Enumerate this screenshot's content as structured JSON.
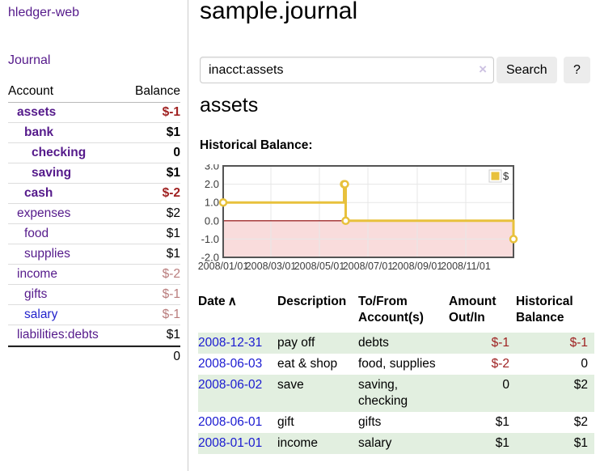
{
  "colors": {
    "link_purple": "#551a8b",
    "link_blue": "#2222cc",
    "date_link_blue": "#1a1ad1",
    "negative_strong": "#a02222",
    "negative_muted": "#b97c7c",
    "table_negative": "#9e2121",
    "row_green": "#e2efe0",
    "chart_gold": "#e8c13c",
    "chart_negative_fill": "#f9dcdc",
    "chart_zero_line": "#8b0000",
    "chart_border": "#545454"
  },
  "app": {
    "title": "hledger-web",
    "nav_journal": "Journal"
  },
  "sidebar": {
    "headers": {
      "account": "Account",
      "balance": "Balance"
    },
    "accounts": [
      {
        "name": "assets",
        "balance": "$-1",
        "depth": 1,
        "current": true,
        "balance_tone": "negative-strong"
      },
      {
        "name": "bank",
        "balance": "$1",
        "depth": 2,
        "current": true,
        "balance_tone": "normal"
      },
      {
        "name": "checking",
        "balance": "0",
        "depth": 3,
        "current": true,
        "balance_tone": "normal"
      },
      {
        "name": "saving",
        "balance": "$1",
        "depth": 3,
        "current": true,
        "balance_tone": "normal"
      },
      {
        "name": "cash",
        "balance": "$-2",
        "depth": 2,
        "current": true,
        "balance_tone": "negative-strong"
      },
      {
        "name": "expenses",
        "balance": "$2",
        "depth": 1,
        "current": false,
        "balance_tone": "normal"
      },
      {
        "name": "food",
        "balance": "$1",
        "depth": 2,
        "current": false,
        "balance_tone": "normal"
      },
      {
        "name": "supplies",
        "balance": "$1",
        "depth": 2,
        "current": false,
        "balance_tone": "normal"
      },
      {
        "name": "income",
        "balance": "$-2",
        "depth": 1,
        "current": false,
        "balance_tone": "negative-muted"
      },
      {
        "name": "gifts",
        "balance": "$-1",
        "depth": 2,
        "current": false,
        "balance_tone": "negative-muted"
      },
      {
        "name": "salary",
        "balance": "$-1",
        "depth": 2,
        "current": false,
        "balance_tone": "negative-muted",
        "link_tone": "blue"
      },
      {
        "name": "liabilities:debts",
        "balance": "$1",
        "depth": 1,
        "current": false,
        "balance_tone": "normal"
      }
    ],
    "total": "0"
  },
  "main": {
    "title": "sample.journal",
    "search": {
      "value": "inacct:assets",
      "clear_icon": "×",
      "submit_label": "Search",
      "help_label": "?"
    },
    "account_heading": "assets",
    "chart_title": "Historical Balance:"
  },
  "chart_data": {
    "type": "line",
    "step": true,
    "title": "Historical Balance",
    "series": [
      {
        "name": "$",
        "color": "#e8c13c",
        "points": [
          [
            "2008-01-01",
            1
          ],
          [
            "2008-06-01",
            2
          ],
          [
            "2008-06-02",
            2
          ],
          [
            "2008-06-03",
            0
          ],
          [
            "2008-12-31",
            -1
          ]
        ]
      }
    ],
    "x_range": [
      "2008-01-01",
      "2008-12-31"
    ],
    "ylim": [
      -2,
      3
    ],
    "yticks": [
      3.0,
      2.0,
      1.0,
      0.0,
      -1.0,
      -2.0
    ],
    "xtick_labels": [
      "2008/01/01",
      "2008/03/01",
      "2008/05/01",
      "2008/07/01",
      "2008/09/01",
      "2008/11/01"
    ],
    "legend": {
      "label": "$",
      "position": "top-right"
    },
    "grid": true,
    "negative_region_shaded": true
  },
  "register": {
    "headers": {
      "date": "Date",
      "sort_indicator": "∧",
      "description": "Description",
      "accounts": "To/From Account(s)",
      "amount": "Amount Out/In",
      "balance": "Historical Balance"
    },
    "rows": [
      {
        "date": "2008-12-31",
        "description": "pay off",
        "accounts": "debts",
        "amount": "$-1",
        "balance": "$-1",
        "shaded": true
      },
      {
        "date": "2008-06-03",
        "description": "eat & shop",
        "accounts": "food, supplies",
        "amount": "$-2",
        "balance": "0",
        "shaded": false
      },
      {
        "date": "2008-06-02",
        "description": "save",
        "accounts": "saving, checking",
        "amount": "0",
        "balance": "$2",
        "shaded": true
      },
      {
        "date": "2008-06-01",
        "description": "gift",
        "accounts": "gifts",
        "amount": "$1",
        "balance": "$2",
        "shaded": false
      },
      {
        "date": "2008-01-01",
        "description": "income",
        "accounts": "salary",
        "amount": "$1",
        "balance": "$1",
        "shaded": true
      }
    ]
  }
}
